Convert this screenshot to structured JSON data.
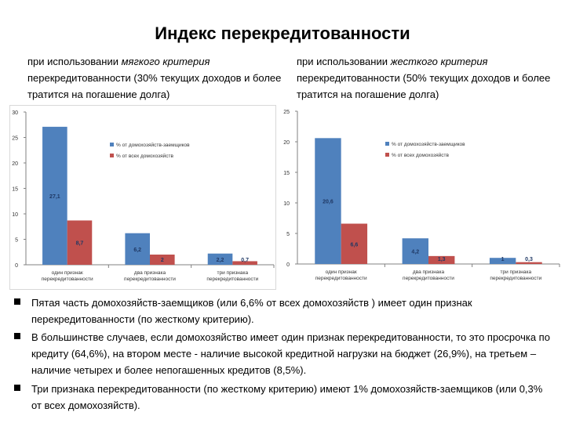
{
  "title": "Индекс перекредитованности",
  "caption_left": {
    "pre": "при использовании ",
    "italic": "мягкого критерия",
    "post": " перекредитованности  (30% текущих доходов и более тратится на погашение долга)"
  },
  "caption_right": {
    "pre": "при использовании ",
    "italic": "жесткого  критерия",
    "post": " перекредитованности  (50% текущих доходов и более тратится на погашение долга)"
  },
  "colors": {
    "series1": "#4f81bd",
    "series2": "#c0504d",
    "grid": "#d9d9d9",
    "axis": "#808080"
  },
  "chart_data": [
    {
      "type": "bar",
      "categories": [
        "один признак перекредитованности",
        "два признака перекредитованности",
        "три признака перекредитованности"
      ],
      "series": [
        {
          "name": "% от домохозяйств-заемщиков",
          "values": [
            27.1,
            6.2,
            2.2
          ]
        },
        {
          "name": "% от всех домохозяйств",
          "values": [
            8.7,
            2,
            0.7
          ]
        }
      ],
      "value_labels": [
        [
          "27,1",
          "6,2",
          "2,2"
        ],
        [
          "8,7",
          "2",
          "0,7"
        ]
      ],
      "ylim": [
        0,
        30
      ],
      "yticks": [
        0,
        5,
        10,
        15,
        20,
        25,
        30
      ],
      "legend": "top-right",
      "grid": false
    },
    {
      "type": "bar",
      "categories": [
        "один признак перекредитованности",
        "два признака перекредитованности",
        "три признака перекредитованности"
      ],
      "series": [
        {
          "name": "% от домохозяйств-заемщиков",
          "values": [
            20.6,
            4.2,
            1
          ]
        },
        {
          "name": "% от всех домохозяйств",
          "values": [
            6.6,
            1.3,
            0.3
          ]
        }
      ],
      "value_labels": [
        [
          "20,6",
          "4,2",
          "1"
        ],
        [
          "6,6",
          "1,3",
          "0,3"
        ]
      ],
      "ylim": [
        0,
        25
      ],
      "yticks": [
        0,
        5,
        10,
        15,
        20,
        25
      ],
      "legend": "top-right",
      "grid": false
    }
  ],
  "bullets": [
    "Пятая часть домохозяйств-заемщиков (или 6,6% от всех домохозяйств ) имеет один признак перекредитованности (по жесткому критерию).",
    "В большинстве случаев, если  домохозяйство имеет один признак перекредитованности, то это просрочка по кредиту (64,6%), на втором месте - наличие высокой кредитной нагрузки на бюджет (26,9%), на третьем – наличие четырех и более непогашенных кредитов (8,5%).",
    "Три признака перекредитованности (по жесткому критерию) имеют 1% домохозяйств-заемщиков (или 0,3% от всех домохозяйств)."
  ]
}
